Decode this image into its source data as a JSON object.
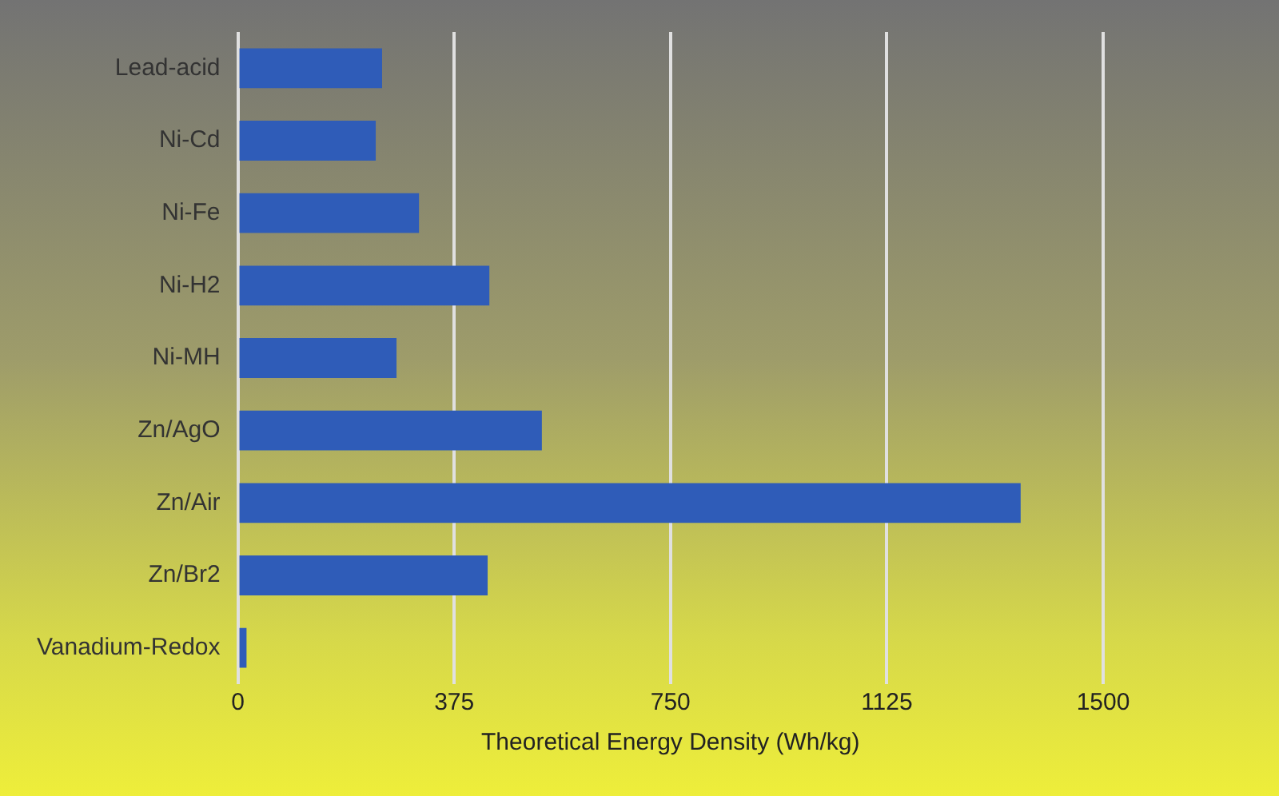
{
  "chart_data": {
    "type": "bar",
    "orientation": "horizontal",
    "categories": [
      "Lead-acid",
      "Ni-Cd",
      "Ni-Fe",
      "Ni-H2",
      "Ni-MH",
      "Zn/AgO",
      "Zn/Air",
      "Zn/Br2",
      "Vanadium-Redox"
    ],
    "values": [
      250,
      239,
      314,
      436,
      275,
      527,
      1357,
      433,
      15
    ],
    "color": "#2f5cb8",
    "xlabel": "Theoretical Energy Density (Wh/kg)",
    "xlim": [
      0,
      1500
    ],
    "xticks": [
      0,
      375,
      750,
      1125,
      1500
    ],
    "grid": "x",
    "legend": false
  }
}
